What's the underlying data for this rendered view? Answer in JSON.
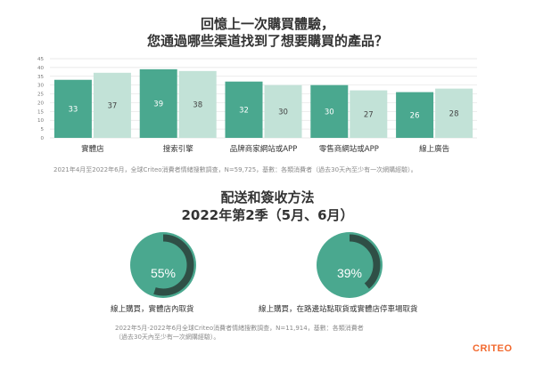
{
  "titles": {
    "chart1_line1": "回憶上一次購買體驗，",
    "chart1_line2": "您通過哪些渠道找到了想要購買的產品？",
    "chart2_line1": "配送和簽收方法",
    "chart2_line2": "2022年第2季（5月、6月）"
  },
  "colors": {
    "series_dark": "#4aa88f",
    "series_light": "#c2e2d7",
    "donut_ring": "#2f4f46",
    "donut_fill": "#4aa88f",
    "logo": "#f2692e"
  },
  "chart_data": [
    {
      "type": "bar",
      "categories": [
        "實體店",
        "搜索引擎",
        "品牌商家網站或APP",
        "零售商網站或APP",
        "線上廣告"
      ],
      "series": [
        {
          "values": [
            33,
            39,
            32,
            30,
            26
          ]
        },
        {
          "values": [
            37,
            38,
            30,
            27,
            28
          ]
        }
      ],
      "ylim": [
        0,
        45
      ],
      "yticks": [
        0,
        5,
        10,
        15,
        20,
        25,
        30,
        35,
        40,
        45
      ],
      "grid": true
    },
    {
      "type": "pie",
      "slices": [
        {
          "label": "線上購買，實體店內取貨",
          "value": 55,
          "value_label": "55%"
        },
        {
          "label": "線上購買，在路邊站點取貨或實體店停車場取貨",
          "value": 39,
          "value_label": "39%"
        }
      ]
    }
  ],
  "notes": {
    "note1": "2021年4月至2022年6月，全球Criteo消費者情緒搜數調查，N=59,725，基數：各類消費者（過去30天內至少有一次網購經驗）。",
    "note2_line1": "2022年5月-2022年6月全球Criteo消費者情緒搜數調查，N=11,914，基數：各類消費者",
    "note2_line2": "（過去30天內至少有一次網購經驗）。"
  },
  "logo": "CRITEO"
}
